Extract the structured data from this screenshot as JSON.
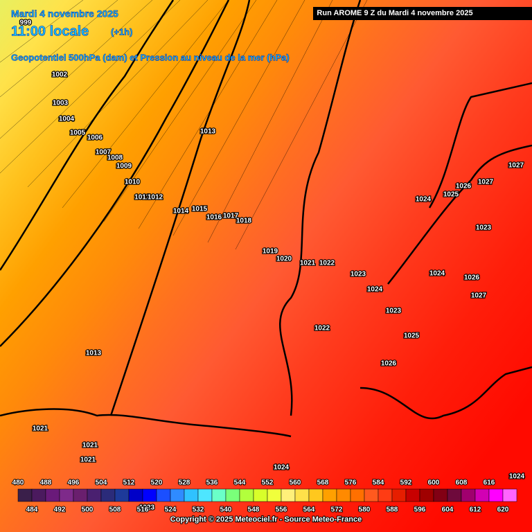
{
  "header": {
    "date": "Mardi 4 novembre 2025",
    "time": "11:00 locale",
    "offset": "(+1h)",
    "field": "Geopotentiel 500hPa (dam) et Pression au niveau de la mer (hPa)",
    "run": "Run AROME 9 Z du Mardi 4 novembre 2025"
  },
  "isobar_labels": [
    "999",
    "1002",
    "1003",
    "1004",
    "1005",
    "1006",
    "1007",
    "1008",
    "1009",
    "1010",
    "1011",
    "1012",
    "1013",
    "1014",
    "1015",
    "1016",
    "1017",
    "1018",
    "1019",
    "1020",
    "1021",
    "1022",
    "1023",
    "1024",
    "1022",
    "1023",
    "1025",
    "1026",
    "1024",
    "1025",
    "1026",
    "1027",
    "1027",
    "1023",
    "1024",
    "1026",
    "1027",
    "1013",
    "1021",
    "1021",
    "1021",
    "1023",
    "1024",
    "1024"
  ],
  "scale": {
    "top_labels": [
      480,
      488,
      496,
      504,
      512,
      520,
      528,
      536,
      544,
      552,
      560,
      568,
      576,
      584,
      592,
      600,
      608,
      616
    ],
    "bottom_labels": [
      484,
      492,
      500,
      508,
      516,
      524,
      532,
      540,
      548,
      556,
      564,
      572,
      580,
      588,
      596,
      604,
      612,
      620
    ],
    "colors": [
      "#3a1f4a",
      "#4b1a5e",
      "#6a1a7a",
      "#7e2a8a",
      "#6a1f6e",
      "#4a2070",
      "#2b2b7a",
      "#1d3a9a",
      "#0000c8",
      "#0000ff",
      "#1b4fff",
      "#2f8bff",
      "#2fc2ff",
      "#4ee6ff",
      "#6affc8",
      "#7aff7a",
      "#b2ff3c",
      "#d8ff2a",
      "#f0ff3c",
      "#fff07a",
      "#ffe14a",
      "#ffc81e",
      "#ffa000",
      "#ff8a00",
      "#ff7000",
      "#ff5a1e",
      "#ff3c14",
      "#e61e00",
      "#c80000",
      "#a00000",
      "#820014",
      "#6e0a3c",
      "#a0006e",
      "#d200b4",
      "#ff00ff",
      "#ff64ff"
    ]
  },
  "copyright": "Copyright © 2025 Meteociel.fr - Source Meteo-France"
}
